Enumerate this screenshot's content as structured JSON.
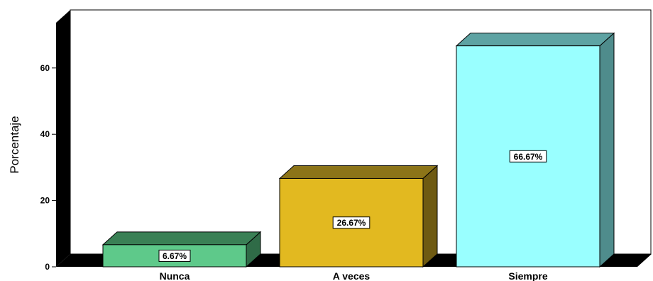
{
  "chart_data": {
    "type": "bar",
    "categories": [
      "Nunca",
      "A veces",
      "Siempre"
    ],
    "values": [
      6.67,
      26.67,
      66.67
    ],
    "data_labels": [
      "6.67%",
      "26.67%",
      "66.67%"
    ],
    "colors": [
      {
        "front": "#5ec98a",
        "top": "#3a8055",
        "side": "#2f6b47"
      },
      {
        "front": "#e2b920",
        "top": "#8c7418",
        "side": "#6e5a12"
      },
      {
        "front": "#99ffff",
        "top": "#5ea3a3",
        "side": "#4f8c8c"
      }
    ],
    "ylabel": "Porcentaje",
    "xlabel": "",
    "ylim": [
      0,
      70
    ],
    "yticks": [
      0,
      20,
      40,
      60
    ],
    "ytick_labels": [
      "0",
      "20",
      "40",
      "60"
    ],
    "grid": false,
    "style": "3d"
  }
}
